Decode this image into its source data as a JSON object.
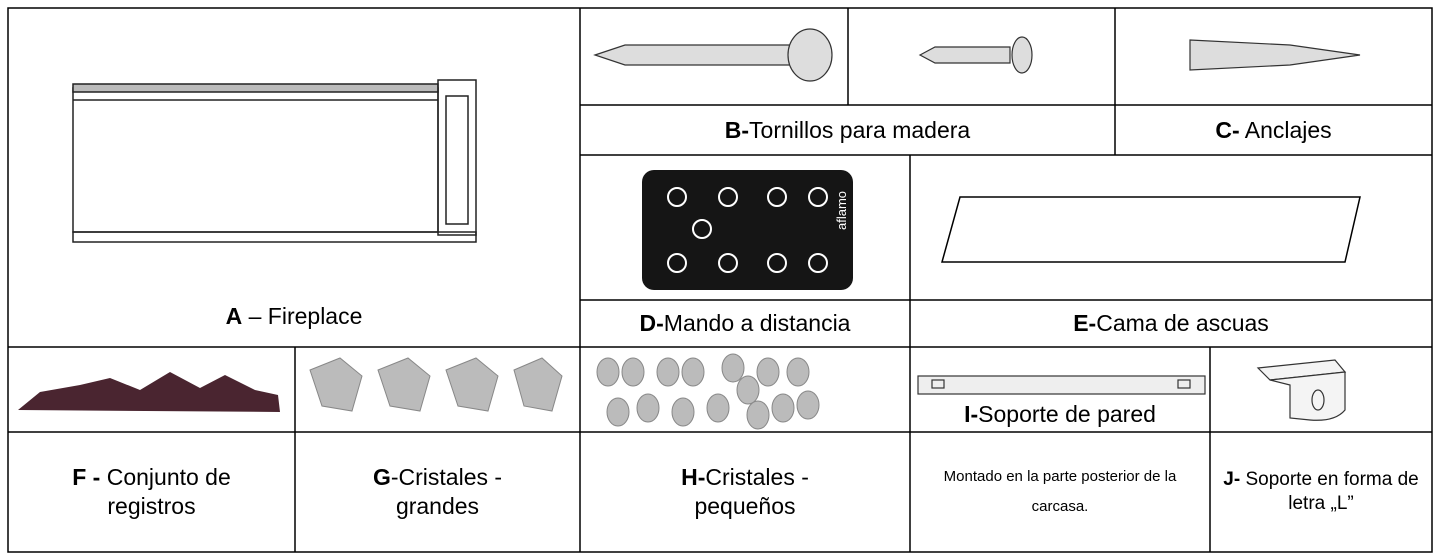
{
  "items": [
    {
      "letter": "A",
      "text": " – Fireplace"
    },
    {
      "letter": "B-",
      "text": "Tornillos para madera"
    },
    {
      "letter": "C-",
      "text": " Anclajes"
    },
    {
      "letter": "D-",
      "text": "Mando a distancia"
    },
    {
      "letter": "E-",
      "text": "Cama de ascuas"
    },
    {
      "letter": "F -",
      "text": " Conjunto de registros"
    },
    {
      "letter": "G",
      "text": "-Cristales - grandes"
    },
    {
      "letter": "H-",
      "text": "Cristales - pequeños"
    },
    {
      "letter": "I-",
      "text": "Soporte de pared"
    },
    {
      "letter": "J-",
      "text": " Soporte en forma de letra „L”"
    }
  ],
  "note": "Montado en la parte posterior de la carcasa.",
  "remote_brand": "aflamo"
}
